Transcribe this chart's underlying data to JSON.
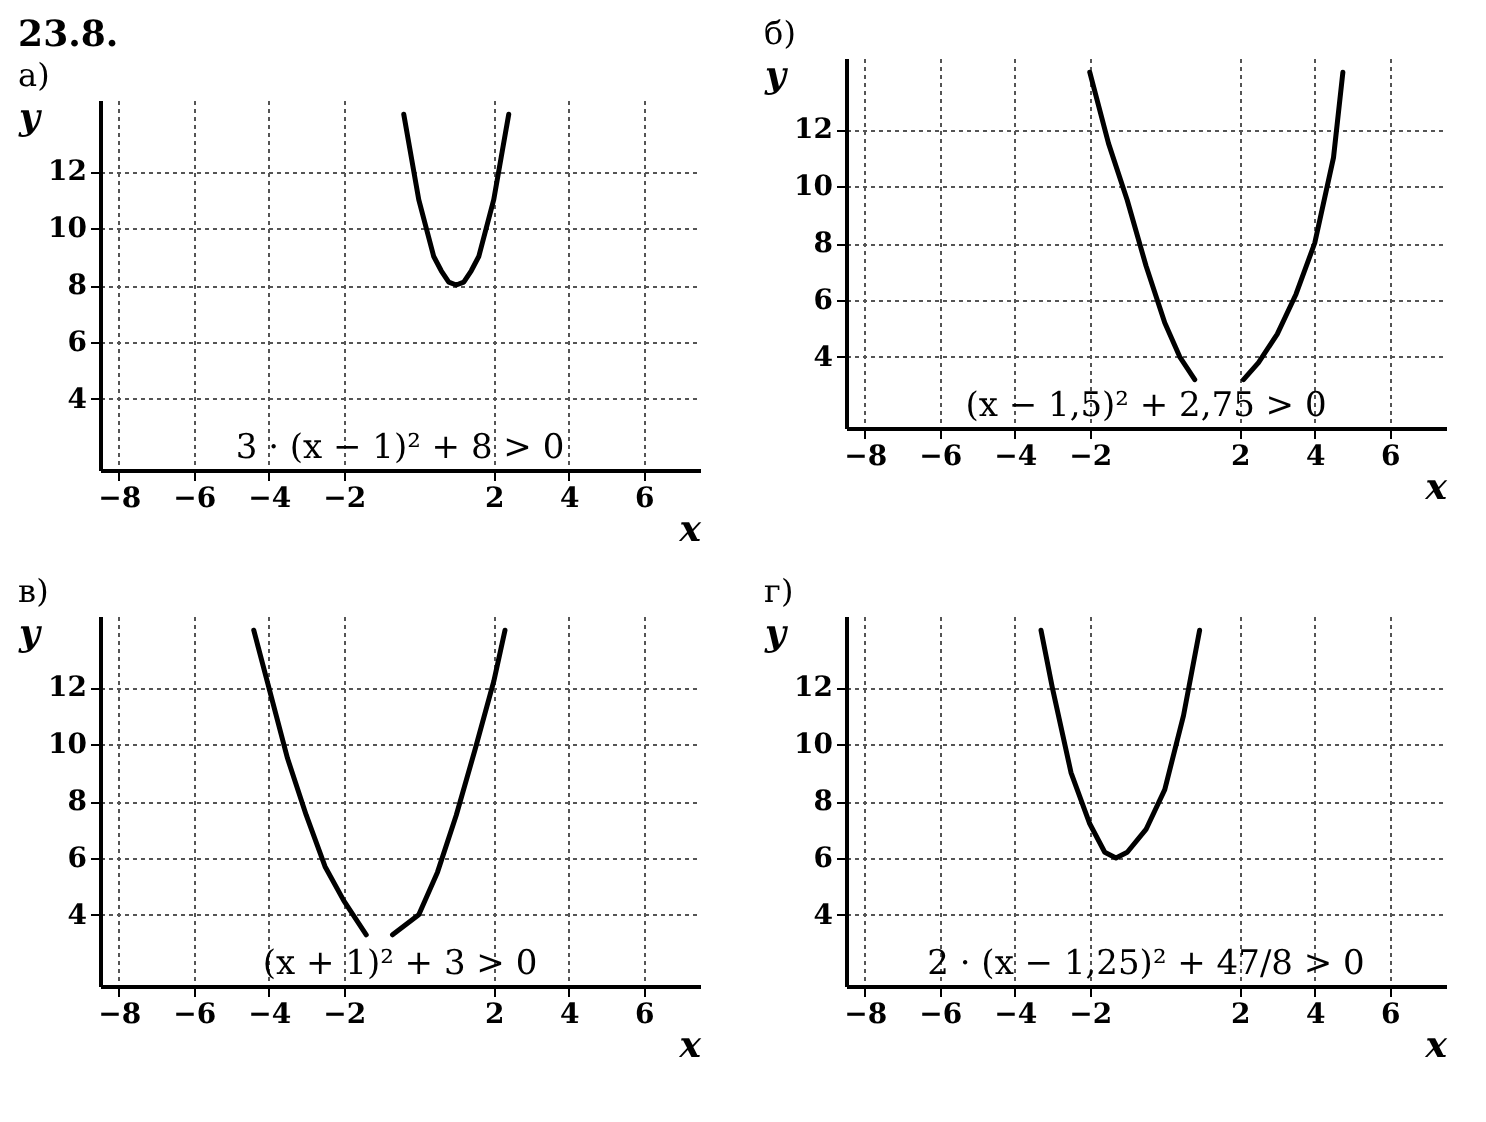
{
  "chart_data": [
    {
      "type": "line",
      "title": "23.8.",
      "subtitle": "а)",
      "xlabel": "x",
      "ylabel": "y",
      "annotations": [
        "3 · (x − 1)² + 8 > 0"
      ],
      "color": "#000000",
      "xlim": [
        -8.5,
        7.5
      ],
      "ylim": [
        1.5,
        14.5
      ],
      "xticks": [
        -8,
        -6,
        -4,
        -2,
        2,
        4,
        6
      ],
      "yticks": [
        4,
        6,
        8,
        10,
        12
      ],
      "grid": true,
      "x": [
        -0.4,
        -0.2,
        0,
        0.2,
        0.4,
        0.6,
        0.8,
        1,
        1.2,
        1.4,
        1.6,
        1.8,
        2,
        2.2,
        2.4
      ],
      "values": [
        14,
        12.5,
        11,
        10,
        9,
        8.5,
        8.1,
        8,
        8.1,
        8.5,
        9,
        10,
        11,
        12.5,
        14
      ]
    },
    {
      "type": "line",
      "subtitle": "б)",
      "xlabel": "x",
      "ylabel": "y",
      "annotations": [
        "(x − 1,5)² + 2,75 > 0"
      ],
      "color": "#000000",
      "xlim": [
        -8.5,
        7.5
      ],
      "ylim": [
        1.5,
        14.5
      ],
      "xticks": [
        -8,
        -6,
        -4,
        -2,
        2,
        4,
        6
      ],
      "yticks": [
        4,
        6,
        8,
        10,
        12
      ],
      "grid": true,
      "x": [
        -2,
        -1.5,
        -1,
        -0.5,
        0,
        0.4,
        0.8,
        1.5,
        2.1,
        2.5,
        3,
        3.5,
        4,
        4.5,
        4.75
      ],
      "values": [
        14,
        11.5,
        9.5,
        7.2,
        5.2,
        4,
        3.2,
        null,
        3.2,
        3.8,
        4.8,
        6.2,
        8,
        11,
        14
      ]
    },
    {
      "type": "line",
      "subtitle": "в)",
      "xlabel": "x",
      "ylabel": "y",
      "annotations": [
        "(x + 1)² + 3 > 0"
      ],
      "color": "#000000",
      "xlim": [
        -8.5,
        7.5
      ],
      "ylim": [
        1.5,
        14.5
      ],
      "xticks": [
        -8,
        -6,
        -4,
        -2,
        2,
        4,
        6
      ],
      "yticks": [
        4,
        6,
        8,
        10,
        12
      ],
      "grid": true,
      "x": [
        -4.4,
        -4,
        -3.5,
        -3,
        -2.5,
        -2,
        -1.4,
        -1,
        -0.7,
        0,
        0.5,
        1,
        1.5,
        2,
        2.3
      ],
      "values": [
        14,
        12,
        9.5,
        7.5,
        5.7,
        4.5,
        3.3,
        null,
        3.3,
        4,
        5.5,
        7.5,
        9.8,
        12.2,
        14
      ]
    },
    {
      "type": "line",
      "subtitle": "г)",
      "xlabel": "x",
      "ylabel": "y",
      "annotations": [
        "2 · (x − 1,25)² + 47/8 > 0"
      ],
      "color": "#000000",
      "xlim": [
        -8.5,
        7.5
      ],
      "ylim": [
        1.5,
        14.5
      ],
      "xticks": [
        -8,
        -6,
        -4,
        -2,
        2,
        4,
        6
      ],
      "yticks": [
        4,
        6,
        8,
        10,
        12
      ],
      "grid": true,
      "x": [
        -3.3,
        -3,
        -2.5,
        -2,
        -1.6,
        -1.3,
        -1,
        -0.5,
        0,
        0.5,
        0.93
      ],
      "values": [
        14,
        12,
        9,
        7.2,
        6.2,
        6,
        6.2,
        7,
        8.4,
        11,
        14
      ]
    }
  ]
}
